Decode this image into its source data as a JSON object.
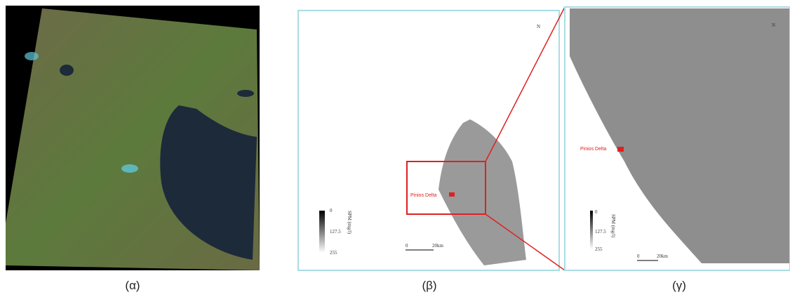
{
  "panels": [
    {
      "caption": "(α)"
    },
    {
      "caption": "(β)",
      "label": "Pinios Delta",
      "legend": {
        "title": "SPM (mg/l)",
        "ticks": [
          "0",
          "127.5",
          "255"
        ]
      },
      "scale": [
        "0",
        "20km"
      ],
      "north": "N"
    },
    {
      "caption": "(γ)",
      "label": "Pinios Delta",
      "legend": {
        "title": "SPM (mg/l)",
        "ticks": [
          "0",
          "127.5",
          "255"
        ]
      },
      "scale": [
        "0",
        "20km"
      ],
      "north": "N"
    }
  ]
}
